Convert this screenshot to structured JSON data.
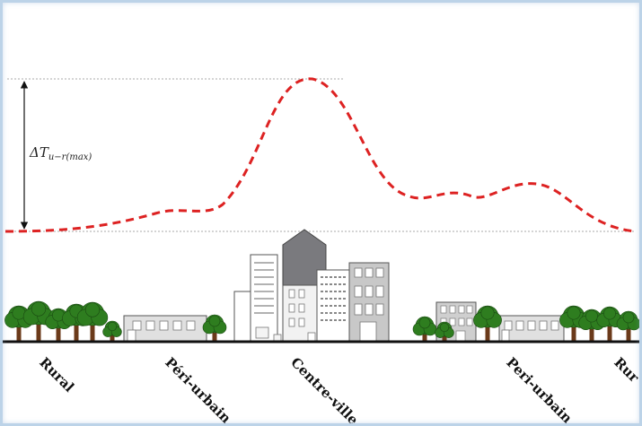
{
  "annotation": {
    "delta_symbol": "ΔT",
    "delta_subscript": "u−r(max)"
  },
  "zones": [
    {
      "label": "Rural"
    },
    {
      "label": "Péri-urbain"
    },
    {
      "label": "Centre-ville"
    },
    {
      "label": "Peri-urbain"
    },
    {
      "label": "Rur"
    }
  ],
  "colors": {
    "temperature_curve": "#dd2222",
    "tree_foliage": "#2e7d1f",
    "tree_trunk": "#6b3a1a",
    "building_light": "#e8e8e8",
    "building_mid": "#bdbdbd",
    "building_dark": "#7a7a7e",
    "ground": "#111111",
    "frame_border": "#bcd3e8"
  }
}
